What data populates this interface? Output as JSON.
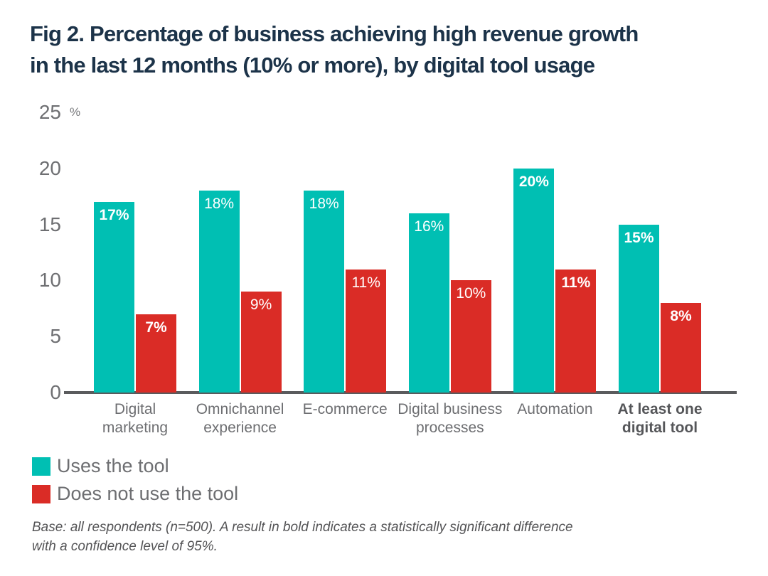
{
  "title_lines": [
    "Fig 2. Percentage of business achieving high revenue growth",
    "in the last 12 months (10% or more), by digital tool usage"
  ],
  "chart_data": {
    "type": "bar",
    "title": "Fig 2. Percentage of business achieving high revenue growth in the last 12 months (10% or more), by digital tool usage",
    "y_unit": "%",
    "ylim": [
      0,
      25
    ],
    "yticks": [
      0,
      5,
      10,
      15,
      20,
      25
    ],
    "grid": false,
    "legend_position": "bottom-left",
    "categories": [
      "Digital marketing",
      "Omnichannel experience",
      "E-commerce",
      "Digital business processes",
      "Automation",
      "At least one digital tool"
    ],
    "category_lines": [
      [
        "Digital",
        "marketing"
      ],
      [
        "Omnichannel",
        "experience"
      ],
      [
        "E-commerce"
      ],
      [
        "Digital business",
        "processes"
      ],
      [
        "Automation"
      ],
      [
        "At least one",
        "digital tool"
      ]
    ],
    "bold_category_index": 5,
    "series": [
      {
        "name": "Uses the tool",
        "color": "#00BFB3",
        "values": [
          17,
          18,
          18,
          16,
          20,
          15
        ]
      },
      {
        "name": "Does not use the tool",
        "color": "#DA2C26",
        "values": [
          7,
          9,
          11,
          10,
          11,
          8
        ]
      }
    ],
    "value_suffix": "%",
    "significant_bold": [
      true,
      false,
      false,
      false,
      true,
      true
    ]
  },
  "footnote": {
    "lines": [
      "Base: all respondents (n=500). A result in bold indicates a statistically significant difference",
      "with a confidence level of 95%."
    ]
  }
}
